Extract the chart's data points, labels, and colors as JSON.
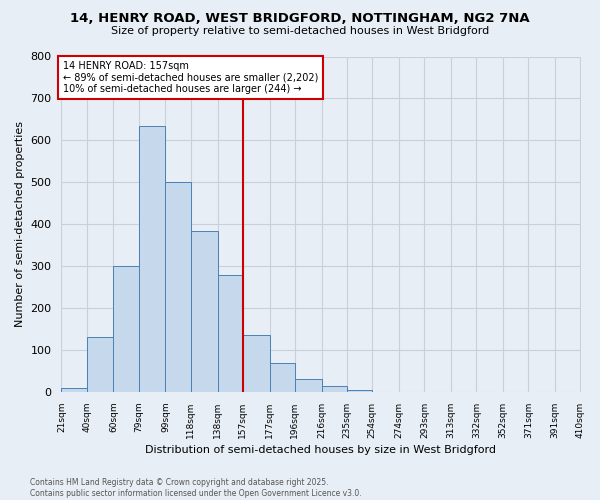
{
  "title_line1": "14, HENRY ROAD, WEST BRIDGFORD, NOTTINGHAM, NG2 7NA",
  "title_line2": "Size of property relative to semi-detached houses in West Bridgford",
  "xlabel": "Distribution of semi-detached houses by size in West Bridgford",
  "ylabel": "Number of semi-detached properties",
  "bin_labels": [
    "21sqm",
    "40sqm",
    "60sqm",
    "79sqm",
    "99sqm",
    "118sqm",
    "138sqm",
    "157sqm",
    "177sqm",
    "196sqm",
    "216sqm",
    "235sqm",
    "254sqm",
    "274sqm",
    "293sqm",
    "313sqm",
    "332sqm",
    "352sqm",
    "371sqm",
    "391sqm",
    "410sqm"
  ],
  "bin_edges": [
    21,
    40,
    60,
    79,
    99,
    118,
    138,
    157,
    177,
    196,
    216,
    235,
    254,
    274,
    293,
    313,
    332,
    352,
    371,
    391,
    410
  ],
  "bar_heights": [
    10,
    130,
    300,
    635,
    500,
    385,
    280,
    135,
    70,
    30,
    15,
    5,
    0,
    0,
    0,
    0,
    0,
    0,
    0,
    0
  ],
  "bar_facecolor": "#c6d9ec",
  "bar_edgecolor": "#4a80b4",
  "grid_color": "#c8d0dc",
  "background_color": "#e8eef5",
  "vline_x": 157,
  "vline_color": "#cc0000",
  "annotation_title": "14 HENRY ROAD: 157sqm",
  "annotation_line2": "← 89% of semi-detached houses are smaller (2,202)",
  "annotation_line3": "10% of semi-detached houses are larger (244) →",
  "annotation_box_color": "#cc0000",
  "ylim": [
    0,
    800
  ],
  "yticks": [
    0,
    100,
    200,
    300,
    400,
    500,
    600,
    700,
    800
  ],
  "footnote_line1": "Contains HM Land Registry data © Crown copyright and database right 2025.",
  "footnote_line2": "Contains public sector information licensed under the Open Government Licence v3.0."
}
